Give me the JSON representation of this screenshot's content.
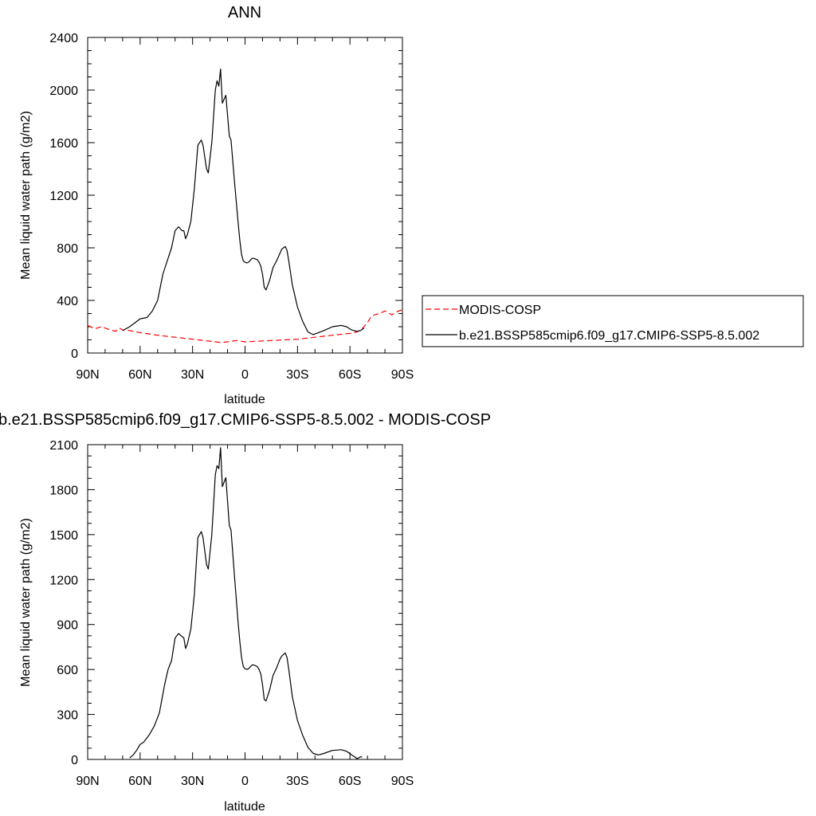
{
  "chart_data": [
    {
      "type": "line",
      "title": "ANN",
      "xlabel": "latitude",
      "ylabel": "Mean liquid water path (g/m2)",
      "xlim": [
        90,
        -90
      ],
      "ylim": [
        0,
        2400
      ],
      "xticks": [
        90,
        60,
        30,
        0,
        -30,
        -60,
        -90
      ],
      "xtick_labels": [
        "90N",
        "60N",
        "30N",
        "0",
        "30S",
        "60S",
        "90S"
      ],
      "yticks": [
        0,
        400,
        800,
        1200,
        1600,
        2000,
        2400
      ],
      "ytick_labels": [
        "0",
        "400",
        "800",
        "1200",
        "1600",
        "2000",
        "2400"
      ],
      "legend_position": "right",
      "series": [
        {
          "name": "MODIS-COSP",
          "color": "#ff0000",
          "dash": "dashed",
          "x": [
            90,
            86,
            82,
            78,
            74,
            72,
            70,
            66,
            60,
            50,
            40,
            30,
            20,
            14,
            10,
            5,
            0,
            -10,
            -20,
            -30,
            -40,
            -50,
            -60,
            -64,
            -67,
            -70,
            -72,
            -74,
            -77,
            -80,
            -84,
            -87,
            -90
          ],
          "y": [
            210,
            185,
            200,
            180,
            165,
            190,
            175,
            170,
            155,
            135,
            120,
            105,
            90,
            80,
            85,
            95,
            85,
            92,
            98,
            105,
            120,
            135,
            150,
            160,
            185,
            230,
            275,
            290,
            300,
            320,
            290,
            315,
            330
          ]
        },
        {
          "name": "b.e21.BSSP585cmip6.f09_g17.CMIP6-SSP5-8.5.002",
          "color": "#000000",
          "dash": "solid",
          "x": [
            70,
            66,
            63,
            60,
            56,
            53,
            50,
            47,
            44,
            42,
            40,
            38,
            36,
            35,
            34,
            33,
            31,
            29,
            27,
            25,
            24,
            22,
            21,
            19,
            18,
            17,
            16,
            15,
            14,
            13,
            11,
            9,
            8,
            6,
            4,
            3,
            2,
            1,
            0,
            -1,
            -2,
            -4,
            -5,
            -7,
            -8,
            -9,
            -10,
            -11,
            -12,
            -14,
            -16,
            -18,
            -20,
            -21,
            -22,
            -23,
            -24,
            -25,
            -27,
            -30,
            -33,
            -36,
            -39,
            -42,
            -45,
            -50,
            -55,
            -58,
            -61,
            -64,
            -66,
            -67,
            -68
          ],
          "y": [
            170,
            200,
            230,
            260,
            270,
            320,
            400,
            600,
            720,
            800,
            930,
            960,
            930,
            930,
            870,
            900,
            1000,
            1250,
            1580,
            1620,
            1580,
            1400,
            1370,
            1600,
            1800,
            2000,
            2070,
            2030,
            2160,
            1900,
            1960,
            1650,
            1620,
            1300,
            1000,
            860,
            750,
            700,
            690,
            685,
            690,
            720,
            720,
            710,
            690,
            660,
            600,
            500,
            480,
            550,
            650,
            700,
            760,
            790,
            800,
            810,
            780,
            700,
            520,
            350,
            240,
            160,
            140,
            155,
            170,
            200,
            210,
            200,
            175,
            165,
            170,
            180,
            190
          ]
        }
      ]
    },
    {
      "type": "line",
      "title": "b.e21.BSSP585cmip6.f09_g17.CMIP6-SSP5-8.5.002 - MODIS-COSP",
      "xlabel": "latitude",
      "ylabel": "Mean liquid water path (g/m2)",
      "xlim": [
        90,
        -90
      ],
      "ylim": [
        0,
        2100
      ],
      "xticks": [
        90,
        60,
        30,
        0,
        -30,
        -60,
        -90
      ],
      "xtick_labels": [
        "90N",
        "60N",
        "30N",
        "0",
        "30S",
        "60S",
        "90S"
      ],
      "yticks": [
        0,
        300,
        600,
        900,
        1200,
        1500,
        1800,
        2100
      ],
      "ytick_labels": [
        "0",
        "300",
        "600",
        "900",
        "1200",
        "1500",
        "1800",
        "2100"
      ],
      "series": [
        {
          "color": "#000000",
          "dash": "solid",
          "x": [
            66,
            64,
            62,
            60,
            58,
            55,
            52,
            49,
            46,
            44,
            42,
            40,
            38,
            36,
            35,
            34,
            33,
            31,
            29,
            27,
            25,
            24,
            22,
            21,
            19,
            18,
            17,
            16,
            15,
            14,
            13,
            11,
            9,
            8,
            6,
            4,
            3,
            2,
            1,
            0,
            -1,
            -2,
            -4,
            -5,
            -7,
            -8,
            -9,
            -10,
            -11,
            -12,
            -14,
            -16,
            -18,
            -20,
            -21,
            -22,
            -23,
            -24,
            -25,
            -27,
            -30,
            -33,
            -36,
            -39,
            -42,
            -45,
            -50,
            -55,
            -58,
            -61,
            -63,
            -64,
            -65,
            -66,
            -67
          ],
          "y": [
            10,
            30,
            60,
            100,
            115,
            160,
            220,
            310,
            500,
            600,
            660,
            810,
            840,
            820,
            810,
            740,
            770,
            870,
            1100,
            1480,
            1520,
            1480,
            1300,
            1270,
            1500,
            1700,
            1900,
            1960,
            1940,
            2080,
            1820,
            1880,
            1560,
            1530,
            1220,
            920,
            790,
            680,
            620,
            605,
            600,
            605,
            630,
            630,
            620,
            600,
            570,
            500,
            400,
            390,
            460,
            560,
            610,
            670,
            690,
            700,
            710,
            680,
            600,
            420,
            260,
            160,
            80,
            40,
            30,
            40,
            60,
            65,
            55,
            30,
            15,
            5,
            10,
            18,
            15
          ]
        }
      ]
    }
  ]
}
